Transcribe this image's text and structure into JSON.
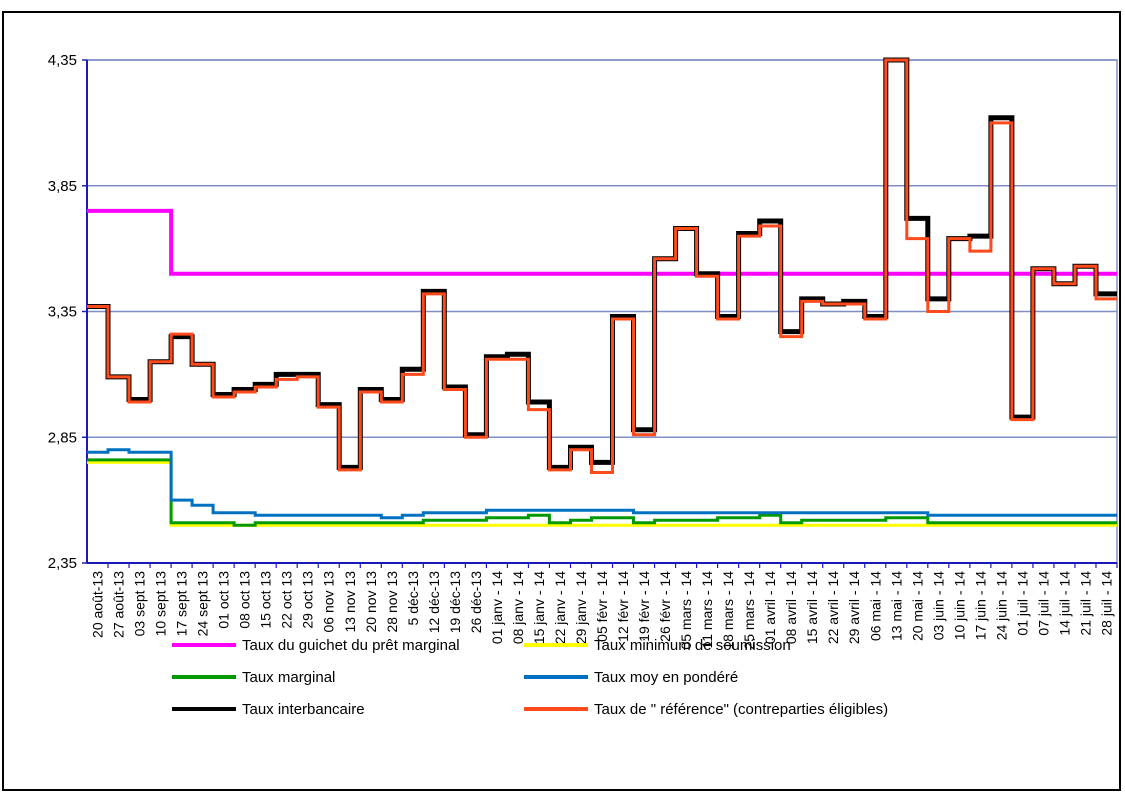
{
  "title_fragment": "",
  "chart_data": {
    "type": "line",
    "title": "",
    "ylim": [
      2.35,
      4.35
    ],
    "yticks": [
      "4,35",
      "3,85",
      "3,35",
      "2,85",
      "2,35"
    ],
    "ytick_values": [
      4.35,
      3.85,
      3.35,
      2.85,
      2.35
    ],
    "grid": true,
    "legend_position": "bottom",
    "x": [
      "20 août-13",
      "27 août-13",
      "03 sept 13",
      "10 sept 13",
      "17 sept 13",
      "24 sept 13",
      "01 oct 13",
      "08 oct 13",
      "15 oct 13",
      "22 oct 13",
      "29 oct 13",
      "06 nov 13",
      "13 nov 13",
      "20 nov 13",
      "28 nov 13",
      "5 déc-13",
      "12 déc-13",
      "19 déc-13",
      "26 déc-13",
      "01 janv - 14",
      "08 janv - 14",
      "15 janv - 14",
      "22 janv - 14",
      "29 janv - 14",
      "05 févr - 14",
      "12 févr - 14",
      "19 févr - 14",
      "26 févr - 14",
      "05 mars - 14",
      "11 mars - 14",
      "18 mars - 14",
      "25 mars - 14",
      "01 avril - 14",
      "08 avril - 14",
      "15 avril - 14",
      "22 avril - 14",
      "29 avril - 14",
      "06 mai - 14",
      "13 mai - 14",
      "20 mai - 14",
      "03 juin - 14",
      "10 juin - 14",
      "17 juin - 14",
      "24 juin - 14",
      "01 juil - 14",
      "07 juil - 14",
      "14 juil - 14",
      "21 juil - 14",
      "28 juil - 14"
    ],
    "series": [
      {
        "name": "Taux du guichet du prêt marginal",
        "color": "#ff00ff",
        "values": [
          3.75,
          3.75,
          3.75,
          3.75,
          3.5,
          3.5,
          3.5,
          3.5,
          3.5,
          3.5,
          3.5,
          3.5,
          3.5,
          3.5,
          3.5,
          3.5,
          3.5,
          3.5,
          3.5,
          3.5,
          3.5,
          3.5,
          3.5,
          3.5,
          3.5,
          3.5,
          3.5,
          3.5,
          3.5,
          3.5,
          3.5,
          3.5,
          3.5,
          3.5,
          3.5,
          3.5,
          3.5,
          3.5,
          3.5,
          3.5,
          3.5,
          3.5,
          3.5,
          3.5,
          3.5,
          3.5,
          3.5,
          3.5,
          3.5
        ]
      },
      {
        "name": "Taux minimum de soumission",
        "color": "#ffff00",
        "values": [
          2.75,
          2.75,
          2.75,
          2.75,
          2.5,
          2.5,
          2.5,
          2.5,
          2.5,
          2.5,
          2.5,
          2.5,
          2.5,
          2.5,
          2.5,
          2.5,
          2.5,
          2.5,
          2.5,
          2.5,
          2.5,
          2.5,
          2.5,
          2.5,
          2.5,
          2.5,
          2.5,
          2.5,
          2.5,
          2.5,
          2.5,
          2.5,
          2.5,
          2.5,
          2.5,
          2.5,
          2.5,
          2.5,
          2.5,
          2.5,
          2.5,
          2.5,
          2.5,
          2.5,
          2.5,
          2.5,
          2.5,
          2.5,
          2.5
        ]
      },
      {
        "name": "Taux marginal",
        "color": "#009900",
        "values": [
          2.76,
          2.76,
          2.76,
          2.76,
          2.51,
          2.51,
          2.51,
          2.5,
          2.51,
          2.51,
          2.51,
          2.51,
          2.51,
          2.51,
          2.51,
          2.51,
          2.52,
          2.52,
          2.52,
          2.53,
          2.53,
          2.54,
          2.51,
          2.52,
          2.53,
          2.53,
          2.51,
          2.52,
          2.52,
          2.52,
          2.53,
          2.53,
          2.54,
          2.51,
          2.52,
          2.52,
          2.52,
          2.52,
          2.53,
          2.53,
          2.51,
          2.51,
          2.51,
          2.51,
          2.51,
          2.51,
          2.51,
          2.51,
          2.51
        ]
      },
      {
        "name": "Taux moy en pondéré",
        "color": "#0070c0",
        "values": [
          2.79,
          2.8,
          2.79,
          2.79,
          2.6,
          2.58,
          2.55,
          2.55,
          2.54,
          2.54,
          2.54,
          2.54,
          2.54,
          2.54,
          2.53,
          2.54,
          2.55,
          2.55,
          2.55,
          2.56,
          2.56,
          2.56,
          2.56,
          2.56,
          2.56,
          2.56,
          2.55,
          2.55,
          2.55,
          2.55,
          2.55,
          2.55,
          2.55,
          2.55,
          2.55,
          2.55,
          2.55,
          2.55,
          2.55,
          2.55,
          2.54,
          2.54,
          2.54,
          2.54,
          2.54,
          2.54,
          2.54,
          2.54,
          2.54
        ]
      },
      {
        "name": "Taux interbancaire",
        "color": "#000000",
        "values": [
          3.37,
          3.09,
          3.0,
          3.15,
          3.25,
          3.14,
          3.02,
          3.04,
          3.06,
          3.1,
          3.1,
          2.98,
          2.73,
          3.04,
          3.0,
          3.12,
          3.43,
          3.05,
          2.86,
          3.17,
          3.18,
          2.99,
          2.73,
          2.81,
          2.75,
          3.33,
          2.88,
          3.56,
          3.68,
          3.5,
          3.33,
          3.66,
          3.71,
          3.27,
          3.4,
          3.38,
          3.39,
          3.33,
          4.35,
          3.72,
          3.4,
          3.64,
          3.65,
          4.12,
          2.93,
          3.52,
          3.46,
          3.53,
          3.42
        ]
      },
      {
        "name": "Taux de \" référence\" (contreparties éligibles)",
        "color": "#ff4a1c",
        "values": [
          3.37,
          3.09,
          2.99,
          3.15,
          3.26,
          3.14,
          3.01,
          3.03,
          3.05,
          3.08,
          3.09,
          2.97,
          2.72,
          3.03,
          2.99,
          3.1,
          3.42,
          3.04,
          2.85,
          3.16,
          3.16,
          2.96,
          2.72,
          2.8,
          2.71,
          3.32,
          2.86,
          3.56,
          3.68,
          3.49,
          3.32,
          3.65,
          3.69,
          3.25,
          3.39,
          3.38,
          3.38,
          3.32,
          4.35,
          3.64,
          3.35,
          3.64,
          3.59,
          4.1,
          2.92,
          3.52,
          3.46,
          3.53,
          3.4
        ]
      }
    ]
  }
}
